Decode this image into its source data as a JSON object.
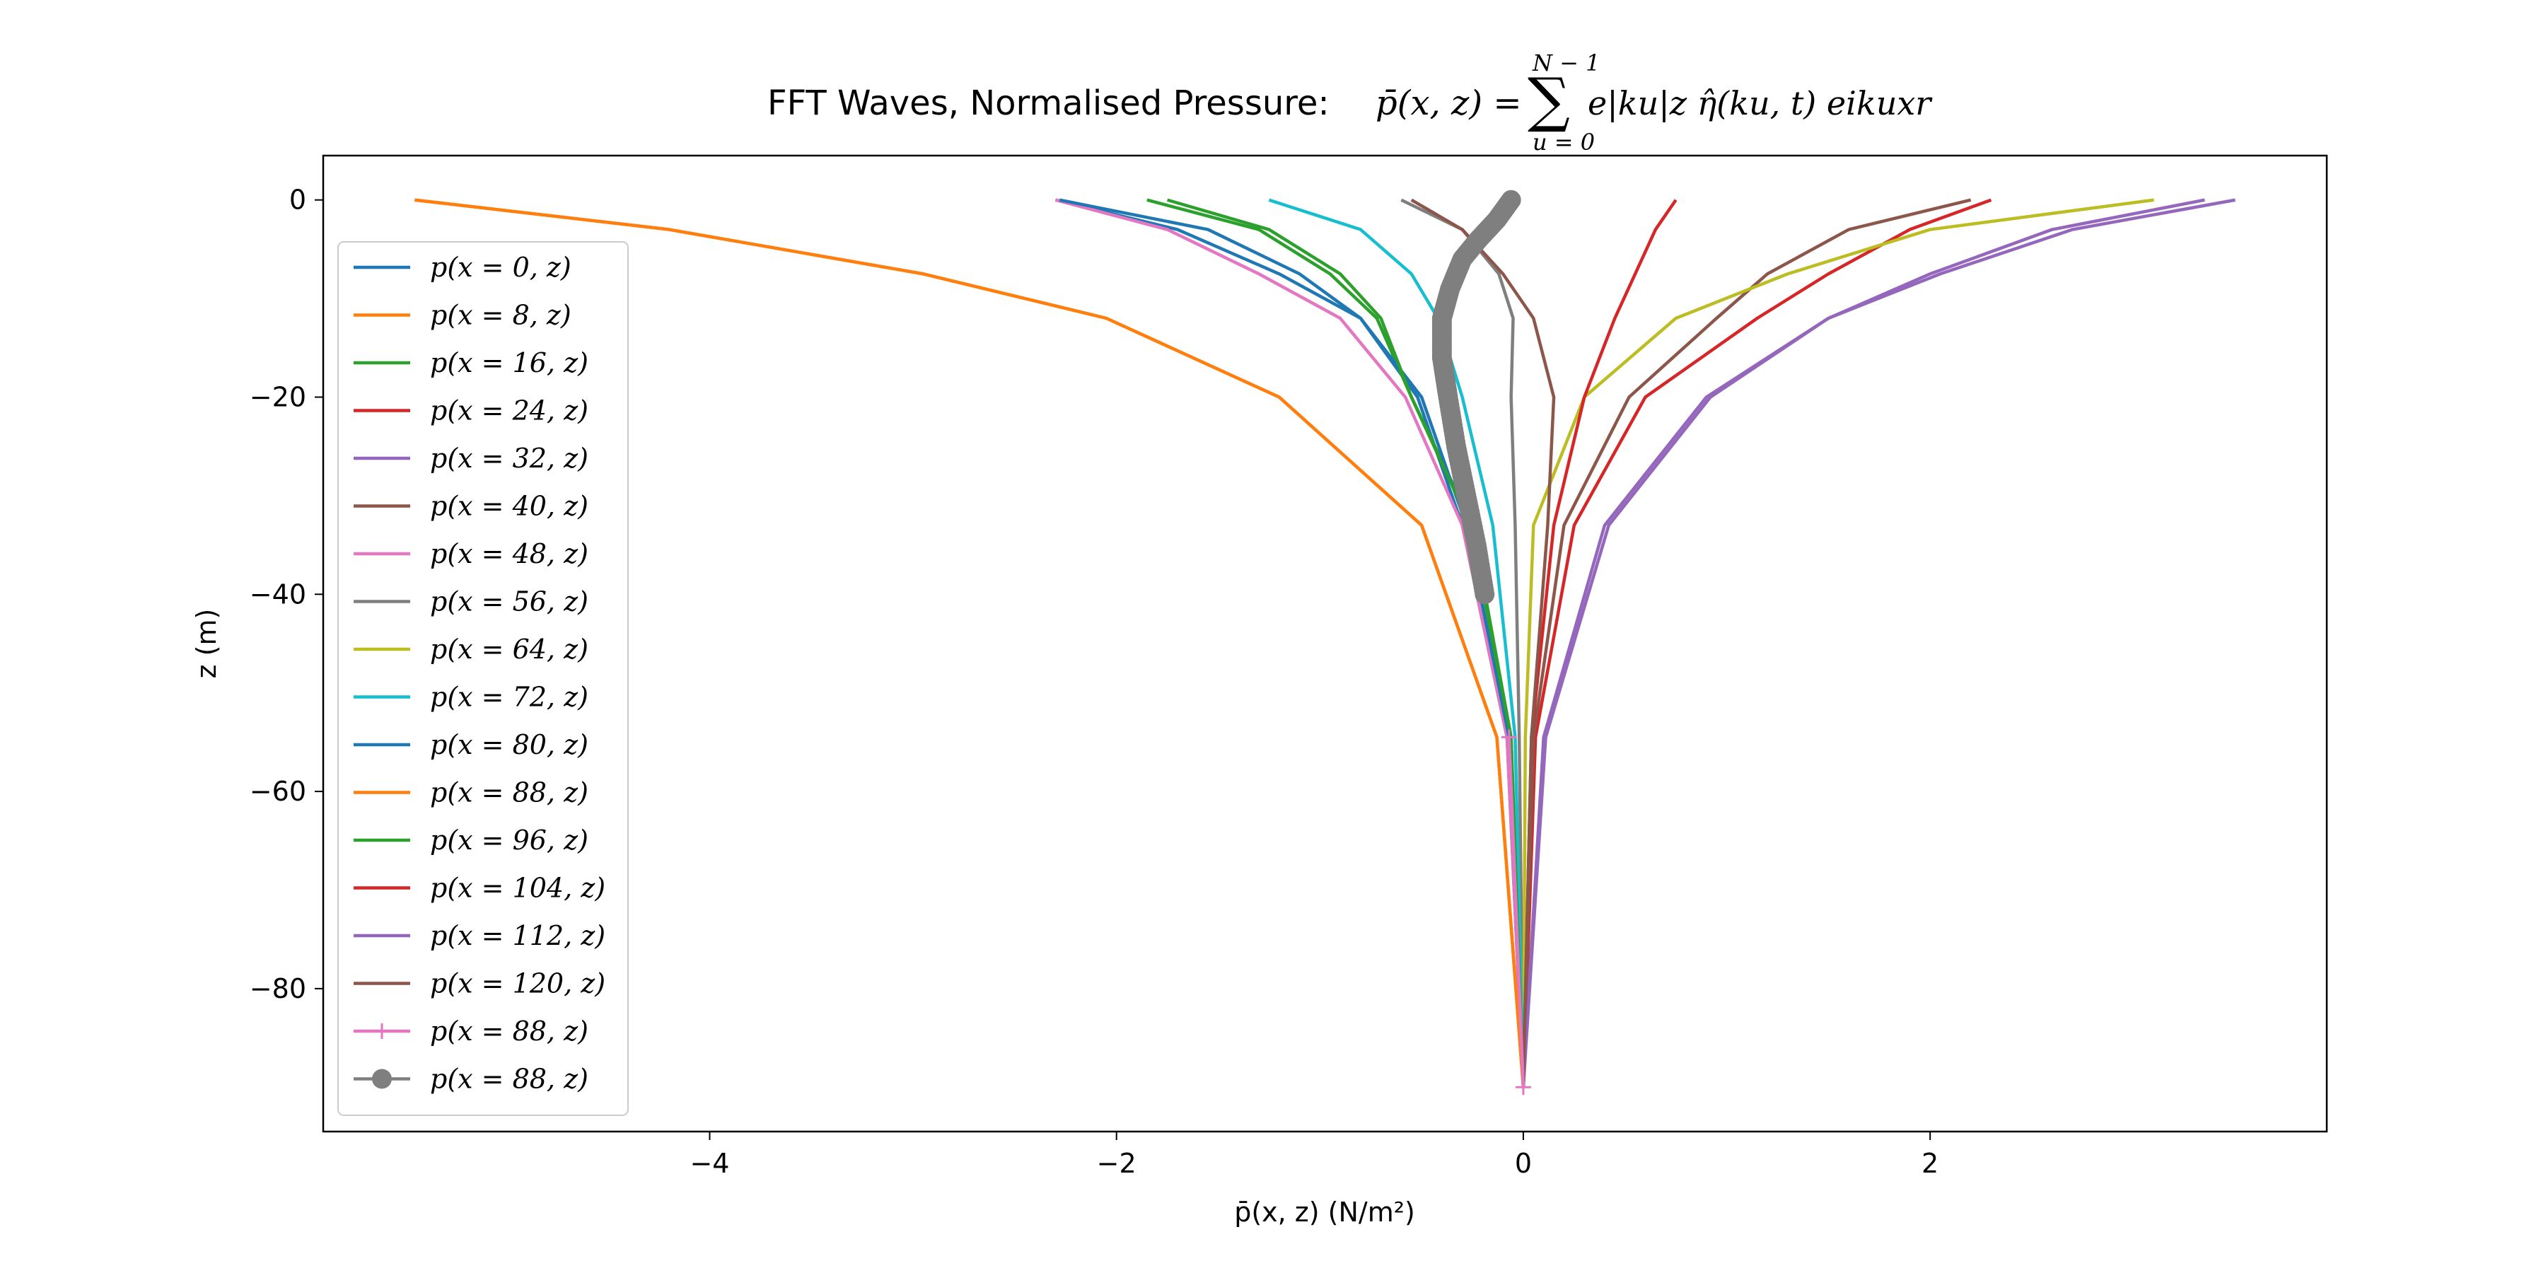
{
  "chart_data": {
    "type": "line",
    "title": {
      "prefix": "FFT Waves, Normalised Pressure: ",
      "lhs": "p̄(x, z) = ",
      "sum_symbol": "∑",
      "sum_upper": "N − 1",
      "sum_lower": "u = 0",
      "body": "e|ku|z η̂(ku, t) eikuxr"
    },
    "xlabel": "p̄(x, z) (N/m²)",
    "ylabel": "z (m)",
    "xlim": [
      -5.9,
      3.95
    ],
    "ylim": [
      -94.5,
      4.5
    ],
    "xticks": [
      -4,
      -2,
      0,
      2
    ],
    "xtick_labels": [
      "−4",
      "−2",
      "0",
      "2"
    ],
    "yticks": [
      0,
      -20,
      -40,
      -60,
      -80
    ],
    "ytick_labels": [
      "0",
      "−20",
      "−40",
      "−60",
      "−80"
    ],
    "grid": false,
    "legend_position": "left",
    "z_levels": [
      0,
      -3,
      -7.5,
      -12,
      -20,
      -33,
      -54.5,
      -90
    ],
    "series": [
      {
        "name": "p(x = 0, z)",
        "color": "#1f77b4",
        "marker": "none",
        "x": [
          -2.3,
          -1.7,
          -1.2,
          -0.8,
          -0.52,
          -0.3,
          -0.08,
          0
        ]
      },
      {
        "name": "p(x = 8, z)",
        "color": "#ff7f0e",
        "marker": "none",
        "x": [
          -5.45,
          -4.2,
          -2.95,
          -2.05,
          -1.2,
          -0.5,
          -0.13,
          0
        ]
      },
      {
        "name": "p(x = 16, z)",
        "color": "#2ca02c",
        "marker": "none",
        "x": [
          -1.85,
          -1.3,
          -0.95,
          -0.72,
          -0.55,
          -0.25,
          -0.06,
          0
        ]
      },
      {
        "name": "p(x = 24, z)",
        "color": "#d62728",
        "marker": "none",
        "x": [
          2.3,
          1.9,
          1.5,
          1.15,
          0.6,
          0.25,
          0.06,
          0
        ]
      },
      {
        "name": "p(x = 32, z)",
        "color": "#9467bd",
        "marker": "none",
        "x": [
          3.35,
          2.6,
          2.0,
          1.5,
          0.9,
          0.4,
          0.1,
          0
        ]
      },
      {
        "name": "p(x = 40, z)",
        "color": "#8c564b",
        "marker": "none",
        "x": [
          2.2,
          1.6,
          1.2,
          0.95,
          0.52,
          0.2,
          0.05,
          0
        ]
      },
      {
        "name": "p(x = 48, z)",
        "color": "#e377c2",
        "marker": "none",
        "x": [
          -2.3,
          -1.75,
          -1.3,
          -0.9,
          -0.58,
          -0.3,
          -0.08,
          0
        ]
      },
      {
        "name": "p(x = 56, z)",
        "color": "#7f7f7f",
        "marker": "none",
        "x": [
          -0.6,
          -0.3,
          -0.12,
          -0.05,
          -0.06,
          -0.04,
          -0.02,
          0
        ]
      },
      {
        "name": "p(x = 64, z)",
        "color": "#bcbd22",
        "marker": "none",
        "x": [
          3.1,
          2.0,
          1.3,
          0.75,
          0.3,
          0.05,
          0.01,
          0
        ]
      },
      {
        "name": "p(x = 72, z)",
        "color": "#17becf",
        "marker": "none",
        "x": [
          -1.25,
          -0.8,
          -0.55,
          -0.42,
          -0.3,
          -0.15,
          -0.04,
          0
        ]
      },
      {
        "name": "p(x = 80, z)",
        "color": "#1f77b4",
        "marker": "none",
        "x": [
          -2.28,
          -1.55,
          -1.1,
          -0.8,
          -0.5,
          -0.28,
          -0.07,
          0
        ]
      },
      {
        "name": "p(x = 88, z)",
        "color": "#ff7f0e",
        "marker": "none",
        "x": [
          -5.45,
          -4.2,
          -2.95,
          -2.05,
          -1.2,
          -0.5,
          -0.13,
          0
        ]
      },
      {
        "name": "p(x = 96, z)",
        "color": "#2ca02c",
        "marker": "none",
        "x": [
          -1.75,
          -1.25,
          -0.9,
          -0.7,
          -0.55,
          -0.26,
          -0.06,
          0
        ]
      },
      {
        "name": "p(x = 104, z)",
        "color": "#d62728",
        "marker": "none",
        "x": [
          0.75,
          0.65,
          0.55,
          0.45,
          0.3,
          0.15,
          0.04,
          0
        ]
      },
      {
        "name": "p(x = 112, z)",
        "color": "#9467bd",
        "marker": "none",
        "x": [
          3.5,
          2.7,
          2.05,
          1.5,
          0.92,
          0.42,
          0.11,
          0
        ]
      },
      {
        "name": "p(x = 120, z)",
        "color": "#8c564b",
        "marker": "none",
        "x": [
          -0.55,
          -0.3,
          -0.1,
          0.05,
          0.15,
          0.12,
          0.04,
          0
        ]
      },
      {
        "name": "p(x = 88, z)",
        "color": "#e377c2",
        "marker": "plus",
        "x": [
          null,
          null,
          null,
          null,
          null,
          null,
          -0.07,
          0
        ]
      }
    ],
    "dense_series": {
      "name": "p(x = 88, z)",
      "color": "#7f7f7f",
      "marker": "circle",
      "control_z": [
        0,
        -2,
        -4,
        -6,
        -9,
        -12,
        -16,
        -20,
        -25,
        -30,
        -35,
        -40
      ],
      "control_x": [
        -0.06,
        -0.13,
        -0.22,
        -0.3,
        -0.36,
        -0.4,
        -0.4,
        -0.37,
        -0.33,
        -0.28,
        -0.23,
        -0.19
      ]
    }
  }
}
